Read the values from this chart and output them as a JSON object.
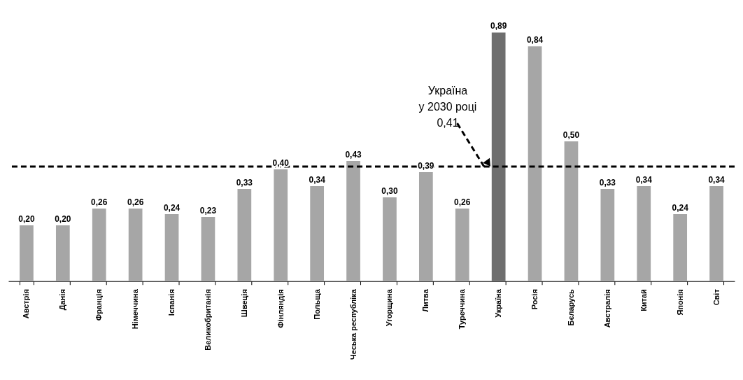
{
  "chart_data": {
    "type": "bar",
    "categories": [
      "Австрія",
      "Данія",
      "Франція",
      "Німеччина",
      "Іспанія",
      "Великобританія",
      "Швеція",
      "Фінляндія",
      "Польща",
      "Чеська республіка",
      "Угорщина",
      "Литва",
      "Туреччина",
      "Україна",
      "Росія",
      "Бєларусь",
      "Австралія",
      "Китай",
      "Японія",
      "Світ"
    ],
    "values": [
      0.2,
      0.2,
      0.26,
      0.26,
      0.24,
      0.23,
      0.33,
      0.4,
      0.34,
      0.43,
      0.3,
      0.39,
      0.26,
      0.89,
      0.84,
      0.5,
      0.33,
      0.34,
      0.24,
      0.34
    ],
    "colors": [
      "#a6a6a6",
      "#a6a6a6",
      "#a6a6a6",
      "#a6a6a6",
      "#a6a6a6",
      "#a6a6a6",
      "#a6a6a6",
      "#a6a6a6",
      "#a6a6a6",
      "#a6a6a6",
      "#a6a6a6",
      "#a6a6a6",
      "#a6a6a6",
      "#6e6e6e",
      "#a6a6a6",
      "#a6a6a6",
      "#a6a6a6",
      "#a6a6a6",
      "#a6a6a6",
      "#a6a6a6"
    ],
    "value_labels": [
      "0,20",
      "0,20",
      "0,26",
      "0,26",
      "0,24",
      "0,23",
      "0,33",
      "0,40",
      "0,34",
      "0,43",
      "0,30",
      "0,39",
      "0,26",
      "0,89",
      "0,84",
      "0,50",
      "0,33",
      "0,34",
      "0,24",
      "0,34"
    ],
    "ref_lines": [
      {
        "axis": "y",
        "value": 0.41,
        "label": "Україна\nу 2030 році\n0,41",
        "color": "#000000"
      }
    ],
    "line_style": "dashed"
  }
}
